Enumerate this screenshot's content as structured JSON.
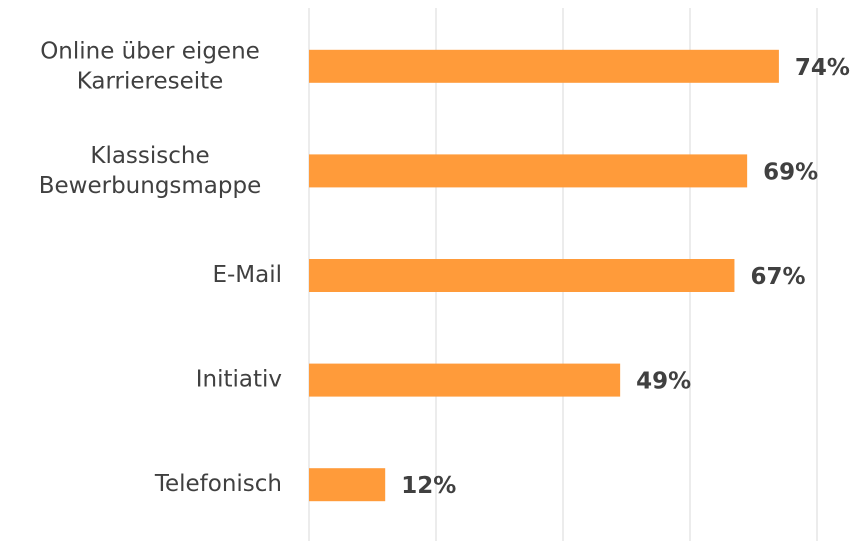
{
  "chart_data": {
    "type": "barh",
    "categories": [
      "Online über eigene\nKarriereseite",
      "Klassische\nBewerbungsmappe",
      "E-Mail",
      "Initiativ",
      "Telefonisch"
    ],
    "values": [
      74,
      69,
      67,
      49,
      12
    ],
    "value_labels": [
      "74%",
      "69%",
      "67%",
      "49%",
      "12%"
    ],
    "color": "#ff9b3a",
    "xlim": [
      0,
      80
    ],
    "xticks": [
      0,
      20,
      40,
      60,
      80
    ],
    "grid": true
  }
}
